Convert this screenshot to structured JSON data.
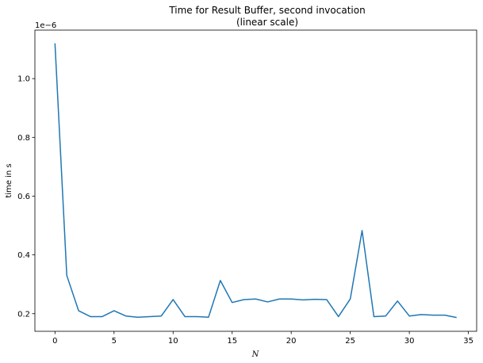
{
  "chart_data": {
    "type": "line",
    "title_line1": "Time for Result Buffer, second invocation",
    "title_line2": "(linear scale)",
    "xlabel": "N",
    "ylabel": "time in s",
    "y_offset_label": "1e−6",
    "xlim": [
      -1.7,
      35.7
    ],
    "ylim": [
      0.14,
      1.165
    ],
    "x_ticks": [
      0,
      5,
      10,
      15,
      20,
      25,
      30,
      35
    ],
    "x_tick_labels": [
      "0",
      "5",
      "10",
      "15",
      "20",
      "25",
      "30",
      "35"
    ],
    "y_ticks": [
      0.2,
      0.4,
      0.6,
      0.8,
      1.0
    ],
    "y_tick_labels": [
      "0.2",
      "0.4",
      "0.6",
      "0.8",
      "1.0"
    ],
    "grid": false,
    "line_color": "#1f77b4",
    "series": [
      {
        "x": [
          0,
          1,
          2,
          3,
          4,
          5,
          6,
          7,
          8,
          9,
          10,
          11,
          12,
          13,
          14,
          15,
          16,
          17,
          18,
          19,
          20,
          21,
          22,
          23,
          24,
          25,
          26,
          27,
          28,
          29,
          30,
          31,
          32,
          33,
          34
        ],
        "y": [
          1.12,
          0.33,
          0.21,
          0.19,
          0.19,
          0.21,
          0.192,
          0.188,
          0.19,
          0.192,
          0.248,
          0.19,
          0.19,
          0.188,
          0.313,
          0.238,
          0.248,
          0.25,
          0.24,
          0.25,
          0.25,
          0.247,
          0.249,
          0.248,
          0.19,
          0.25,
          0.483,
          0.19,
          0.192,
          0.243,
          0.192,
          0.197,
          0.195,
          0.195,
          0.187
        ]
      }
    ]
  }
}
